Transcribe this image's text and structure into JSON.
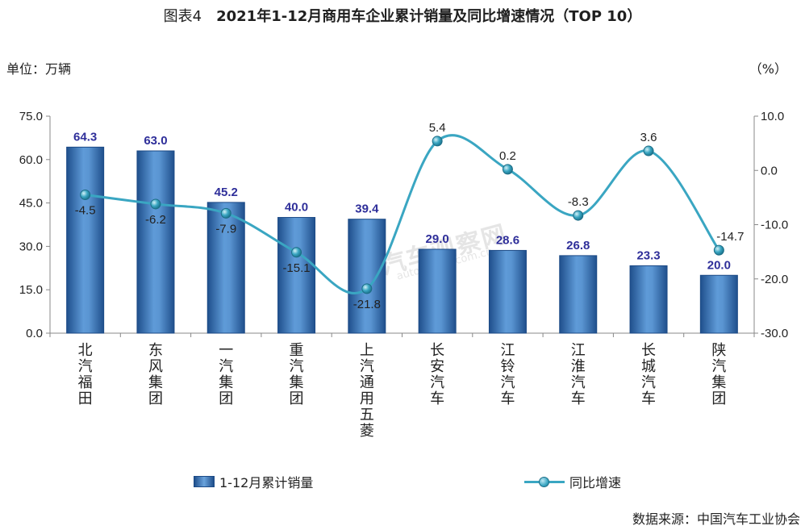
{
  "title": {
    "figure_label": "图表4",
    "text": "2021年1-12月商用车企业累计销量及同比增速情况（TOP 10）"
  },
  "units": {
    "left": "单位：万辆",
    "right": "（%）"
  },
  "source": "数据来源：中国汽车工业协会",
  "watermark": {
    "main": "汽车观察网",
    "sub": "autoreview.com.cn"
  },
  "colors": {
    "bar": "#3f77c0",
    "bar_dark": "#1f4f8c",
    "line": "#3aa6c2",
    "label_bar": "#2f2f9a"
  },
  "chart_data": {
    "type": "bar",
    "categories": [
      "北汽福田",
      "东风集团",
      "一汽集团",
      "重汽集团",
      "上汽通用五菱",
      "长安汽车",
      "江铃汽车",
      "江淮汽车",
      "长城汽车",
      "陕汽集团"
    ],
    "series": [
      {
        "name": "1-12月累计销量",
        "type": "bar",
        "axis": "left",
        "values": [
          64.3,
          63.0,
          45.2,
          40.0,
          39.4,
          29.0,
          28.6,
          26.8,
          23.3,
          20.0
        ]
      },
      {
        "name": "同比增速",
        "type": "line",
        "axis": "right",
        "values": [
          -4.5,
          -6.2,
          -7.9,
          -15.1,
          -21.8,
          5.4,
          0.2,
          -8.3,
          3.6,
          -14.7
        ]
      }
    ],
    "y_left": {
      "ylim": [
        0,
        75
      ],
      "ticks": [
        "0.0",
        "15.0",
        "30.0",
        "45.0",
        "60.0",
        "75.0"
      ]
    },
    "y_right": {
      "ylim": [
        -30,
        10
      ],
      "ticks": [
        "-30.0",
        "-20.0",
        "-10.0",
        "0.0",
        "10.0"
      ]
    },
    "grid": false,
    "legend_position": "bottom"
  }
}
